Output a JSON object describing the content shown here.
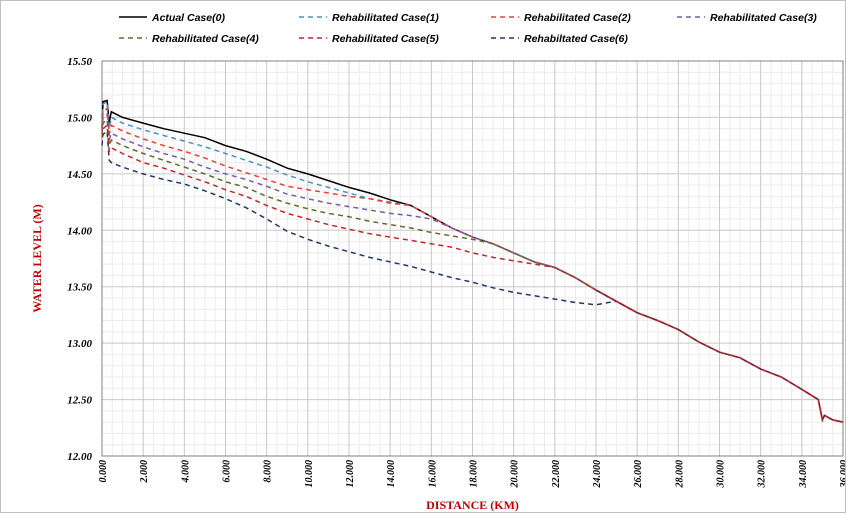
{
  "chart_data": {
    "type": "line",
    "title": "",
    "xlabel": "DISTANCE (KM)",
    "ylabel": "WATER LEVEL (M)",
    "xlim": [
      0,
      36
    ],
    "ylim": [
      12.0,
      15.5
    ],
    "x_ticks": [
      "0.000",
      "2.000",
      "4.000",
      "6.000",
      "8.000",
      "10.000",
      "12.000",
      "14.000",
      "16.000",
      "18.000",
      "20.000",
      "22.000",
      "24.000",
      "26.000",
      "28.000",
      "30.000",
      "32.000",
      "34.000",
      "36.000"
    ],
    "y_ticks": [
      "12.00",
      "12.50",
      "13.00",
      "13.50",
      "14.00",
      "14.50",
      "15.00",
      "15.50"
    ],
    "grid": true,
    "legend_position": "top",
    "common_tail": [
      [
        24.0,
        13.47
      ],
      [
        25.0,
        13.37
      ],
      [
        26.0,
        13.27
      ],
      [
        27.0,
        13.2
      ],
      [
        28.0,
        13.12
      ],
      [
        29.0,
        13.01
      ],
      [
        30.0,
        12.92
      ],
      [
        31.0,
        12.87
      ],
      [
        32.0,
        12.77
      ],
      [
        33.0,
        12.7
      ],
      [
        34.0,
        12.59
      ],
      [
        34.8,
        12.5
      ],
      [
        35.0,
        12.32
      ],
      [
        35.1,
        12.36
      ],
      [
        35.5,
        12.32
      ],
      [
        36.0,
        12.3
      ]
    ],
    "series": [
      {
        "name": "Actual Case(0)",
        "color": "#000000",
        "dash": "solid",
        "points": [
          [
            0.0,
            14.9
          ],
          [
            0.05,
            15.14
          ],
          [
            0.25,
            15.15
          ],
          [
            0.35,
            14.95
          ],
          [
            0.45,
            15.05
          ],
          [
            1.0,
            15.0
          ],
          [
            2.0,
            14.95
          ],
          [
            3.0,
            14.9
          ],
          [
            4.0,
            14.86
          ],
          [
            5.0,
            14.82
          ],
          [
            6.0,
            14.75
          ],
          [
            7.0,
            14.7
          ],
          [
            8.0,
            14.63
          ],
          [
            9.0,
            14.55
          ],
          [
            10.0,
            14.5
          ],
          [
            11.0,
            14.44
          ],
          [
            12.0,
            14.38
          ],
          [
            13.0,
            14.33
          ],
          [
            14.0,
            14.27
          ],
          [
            15.0,
            14.22
          ],
          [
            16.0,
            14.12
          ],
          [
            17.0,
            14.02
          ],
          [
            18.0,
            13.94
          ],
          [
            19.0,
            13.88
          ],
          [
            20.0,
            13.8
          ],
          [
            21.0,
            13.72
          ],
          [
            22.0,
            13.67
          ],
          [
            23.0,
            13.58
          ],
          [
            24.0,
            13.47
          ]
        ]
      },
      {
        "name": "Rehabilitated Case(1)",
        "color": "#4a90c4",
        "dash": "5,4",
        "points": [
          [
            0.0,
            14.95
          ],
          [
            0.05,
            15.12
          ],
          [
            0.25,
            15.14
          ],
          [
            0.35,
            14.9
          ],
          [
            0.45,
            15.0
          ],
          [
            1.0,
            14.95
          ],
          [
            2.0,
            14.89
          ],
          [
            3.0,
            14.84
          ],
          [
            4.0,
            14.79
          ],
          [
            5.0,
            14.74
          ],
          [
            6.0,
            14.68
          ],
          [
            7.0,
            14.62
          ],
          [
            8.0,
            14.56
          ],
          [
            9.0,
            14.49
          ],
          [
            10.0,
            14.43
          ],
          [
            11.0,
            14.38
          ],
          [
            12.0,
            14.33
          ],
          [
            13.0,
            14.28
          ],
          [
            14.0,
            14.25
          ],
          [
            15.0,
            14.22
          ],
          [
            16.0,
            14.12
          ],
          [
            17.0,
            14.02
          ],
          [
            18.0,
            13.94
          ],
          [
            19.0,
            13.88
          ],
          [
            20.0,
            13.8
          ],
          [
            21.0,
            13.72
          ],
          [
            22.0,
            13.67
          ],
          [
            23.0,
            13.58
          ],
          [
            24.0,
            13.47
          ]
        ]
      },
      {
        "name": "Rehabilitated Case(2)",
        "color": "#e8413c",
        "dash": "5,4",
        "points": [
          [
            0.0,
            14.92
          ],
          [
            0.05,
            15.05
          ],
          [
            0.25,
            15.08
          ],
          [
            0.35,
            14.85
          ],
          [
            0.45,
            14.93
          ],
          [
            1.0,
            14.88
          ],
          [
            2.0,
            14.81
          ],
          [
            3.0,
            14.75
          ],
          [
            4.0,
            14.7
          ],
          [
            5.0,
            14.64
          ],
          [
            6.0,
            14.57
          ],
          [
            7.0,
            14.51
          ],
          [
            8.0,
            14.45
          ],
          [
            9.0,
            14.39
          ],
          [
            10.0,
            14.36
          ],
          [
            11.0,
            14.33
          ],
          [
            12.0,
            14.3
          ],
          [
            13.0,
            14.28
          ],
          [
            14.0,
            14.24
          ],
          [
            15.0,
            14.22
          ],
          [
            16.0,
            14.12
          ],
          [
            17.0,
            14.02
          ],
          [
            18.0,
            13.94
          ],
          [
            19.0,
            13.88
          ],
          [
            20.0,
            13.8
          ],
          [
            21.0,
            13.72
          ],
          [
            22.0,
            13.67
          ],
          [
            23.0,
            13.58
          ],
          [
            24.0,
            13.47
          ]
        ]
      },
      {
        "name": "Rehabilitated Case(3)",
        "color": "#7e5aa6",
        "dash": "5,4",
        "points": [
          [
            0.0,
            14.88
          ],
          [
            0.05,
            15.0
          ],
          [
            0.25,
            15.03
          ],
          [
            0.35,
            14.8
          ],
          [
            0.45,
            14.86
          ],
          [
            1.0,
            14.81
          ],
          [
            2.0,
            14.74
          ],
          [
            3.0,
            14.68
          ],
          [
            4.0,
            14.63
          ],
          [
            5.0,
            14.56
          ],
          [
            6.0,
            14.5
          ],
          [
            7.0,
            14.45
          ],
          [
            8.0,
            14.39
          ],
          [
            9.0,
            14.32
          ],
          [
            10.0,
            14.28
          ],
          [
            11.0,
            14.24
          ],
          [
            12.0,
            14.21
          ],
          [
            13.0,
            14.18
          ],
          [
            14.0,
            14.15
          ],
          [
            15.0,
            14.13
          ],
          [
            16.0,
            14.1
          ],
          [
            17.0,
            14.02
          ],
          [
            18.0,
            13.94
          ],
          [
            19.0,
            13.88
          ],
          [
            20.0,
            13.8
          ],
          [
            21.0,
            13.72
          ],
          [
            22.0,
            13.67
          ],
          [
            23.0,
            13.58
          ],
          [
            24.0,
            13.47
          ]
        ]
      },
      {
        "name": "Rehabilitated Case(4)",
        "color": "#5e6b2e",
        "dash": "5,4",
        "points": [
          [
            0.0,
            14.85
          ],
          [
            0.05,
            14.95
          ],
          [
            0.25,
            14.98
          ],
          [
            0.35,
            14.75
          ],
          [
            0.45,
            14.8
          ],
          [
            1.0,
            14.75
          ],
          [
            2.0,
            14.68
          ],
          [
            3.0,
            14.62
          ],
          [
            4.0,
            14.56
          ],
          [
            5.0,
            14.5
          ],
          [
            6.0,
            14.43
          ],
          [
            7.0,
            14.38
          ],
          [
            8.0,
            14.3
          ],
          [
            9.0,
            14.24
          ],
          [
            10.0,
            14.19
          ],
          [
            11.0,
            14.15
          ],
          [
            12.0,
            14.12
          ],
          [
            13.0,
            14.08
          ],
          [
            14.0,
            14.05
          ],
          [
            15.0,
            14.02
          ],
          [
            16.0,
            13.98
          ],
          [
            17.0,
            13.95
          ],
          [
            18.0,
            13.92
          ],
          [
            19.0,
            13.88
          ],
          [
            20.0,
            13.8
          ],
          [
            21.0,
            13.72
          ],
          [
            22.0,
            13.67
          ],
          [
            23.0,
            13.58
          ],
          [
            24.0,
            13.47
          ]
        ]
      },
      {
        "name": "Rehabilitated Case(5)",
        "color": "#c0272d",
        "dash": "5,4",
        "points": [
          [
            0.0,
            14.82
          ],
          [
            0.05,
            14.9
          ],
          [
            0.25,
            14.93
          ],
          [
            0.35,
            14.7
          ],
          [
            0.45,
            14.73
          ],
          [
            1.0,
            14.68
          ],
          [
            2.0,
            14.6
          ],
          [
            3.0,
            14.55
          ],
          [
            4.0,
            14.49
          ],
          [
            5.0,
            14.43
          ],
          [
            6.0,
            14.36
          ],
          [
            7.0,
            14.3
          ],
          [
            8.0,
            14.22
          ],
          [
            9.0,
            14.15
          ],
          [
            10.0,
            14.1
          ],
          [
            11.0,
            14.05
          ],
          [
            12.0,
            14.01
          ],
          [
            13.0,
            13.97
          ],
          [
            14.0,
            13.94
          ],
          [
            15.0,
            13.91
          ],
          [
            16.0,
            13.88
          ],
          [
            17.0,
            13.85
          ],
          [
            18.0,
            13.8
          ],
          [
            19.0,
            13.76
          ],
          [
            20.0,
            13.73
          ],
          [
            21.0,
            13.7
          ],
          [
            22.0,
            13.67
          ],
          [
            23.0,
            13.58
          ],
          [
            24.0,
            13.47
          ]
        ]
      },
      {
        "name": "Rehabiltated Case(6)",
        "color": "#1f3868",
        "dash": "5,4",
        "points": [
          [
            0.0,
            14.75
          ],
          [
            0.05,
            14.85
          ],
          [
            0.25,
            14.88
          ],
          [
            0.35,
            14.62
          ],
          [
            0.45,
            14.6
          ],
          [
            1.0,
            14.56
          ],
          [
            2.0,
            14.5
          ],
          [
            3.0,
            14.45
          ],
          [
            4.0,
            14.41
          ],
          [
            5.0,
            14.35
          ],
          [
            6.0,
            14.28
          ],
          [
            7.0,
            14.2
          ],
          [
            8.0,
            14.1
          ],
          [
            9.0,
            13.99
          ],
          [
            10.0,
            13.92
          ],
          [
            11.0,
            13.86
          ],
          [
            12.0,
            13.81
          ],
          [
            13.0,
            13.76
          ],
          [
            14.0,
            13.72
          ],
          [
            15.0,
            13.68
          ],
          [
            16.0,
            13.63
          ],
          [
            17.0,
            13.58
          ],
          [
            18.0,
            13.54
          ],
          [
            19.0,
            13.49
          ],
          [
            20.0,
            13.45
          ],
          [
            21.0,
            13.42
          ],
          [
            22.0,
            13.39
          ],
          [
            23.0,
            13.36
          ],
          [
            24.0,
            13.34
          ],
          [
            24.6,
            13.36
          ],
          [
            25.0,
            13.37
          ]
        ]
      }
    ]
  }
}
